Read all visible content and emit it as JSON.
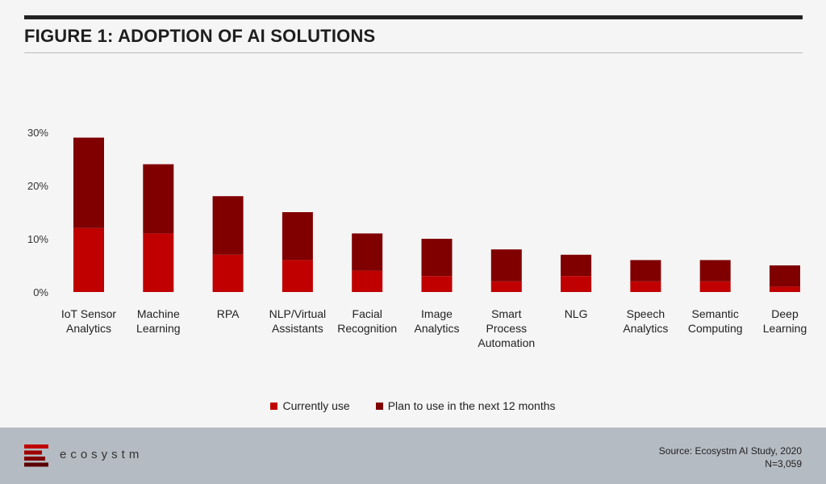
{
  "header": {
    "title": "FIGURE 1: ADOPTION OF AI SOLUTIONS"
  },
  "footer": {
    "logo_text": "ecosystm",
    "source": "Source: Ecosystm AI Study, 2020",
    "n": "N=3,059"
  },
  "colors": {
    "currently": "#c00000",
    "plan": "#800000"
  },
  "legend": [
    {
      "label": "Currently use",
      "color": "#c00000"
    },
    {
      "label": "Plan to use in the next 12 months",
      "color": "#800000"
    }
  ],
  "chart_data": {
    "type": "bar",
    "stacked": true,
    "title": "FIGURE 1: ADOPTION OF AI SOLUTIONS",
    "categories": [
      [
        "IoT Sensor",
        "Analytics"
      ],
      [
        "Machine",
        "Learning"
      ],
      [
        "RPA"
      ],
      [
        "NLP/Virtual",
        "Assistants"
      ],
      [
        "Facial",
        "Recognition"
      ],
      [
        "Image",
        "Analytics"
      ],
      [
        "Smart",
        "Process",
        "Automation"
      ],
      [
        "NLG"
      ],
      [
        "Speech",
        "Analytics"
      ],
      [
        "Semantic",
        "Computing"
      ],
      [
        "Deep",
        "Learning"
      ]
    ],
    "series": [
      {
        "name": "Currently use",
        "values": [
          12,
          11,
          7,
          6,
          4,
          3,
          2,
          3,
          2,
          2,
          1
        ]
      },
      {
        "name": "Plan to use in the next 12 months",
        "values": [
          17,
          13,
          11,
          9,
          7,
          7,
          6,
          4,
          4,
          4,
          4
        ]
      }
    ],
    "yticks": [
      "0%",
      "10%",
      "20%",
      "30%"
    ],
    "ylim": [
      0,
      30
    ],
    "grid": false,
    "legend_position": "bottom"
  }
}
